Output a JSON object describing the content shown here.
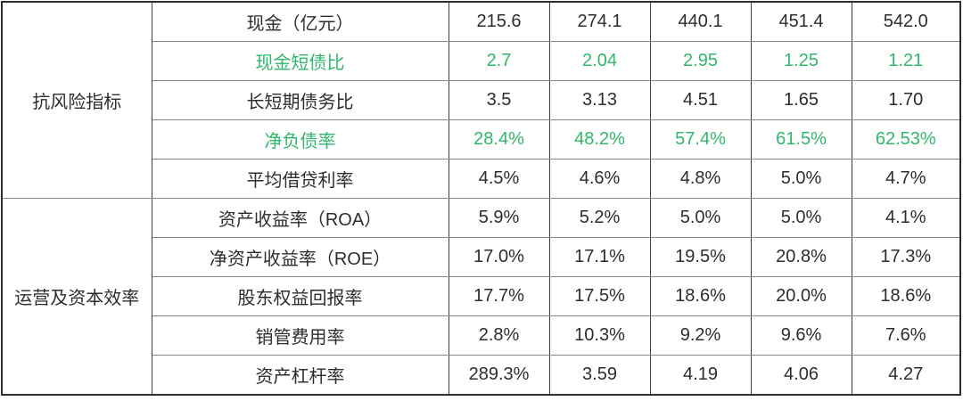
{
  "chart_data": {
    "type": "table",
    "title": "",
    "column_headers": [],
    "green_hex": "#31b76c",
    "text_hex": "#2d2d2d",
    "row_groups": [
      {
        "label": "抗风险指标",
        "rows": [
          {
            "metric": "现金（亿元）",
            "highlight": false,
            "values": [
              "215.6",
              "274.1",
              "440.1",
              "451.4",
              "542.0"
            ]
          },
          {
            "metric": "现金短债比",
            "highlight": true,
            "values": [
              "2.7",
              "2.04",
              "2.95",
              "1.25",
              "1.21"
            ]
          },
          {
            "metric": "长短期债务比",
            "highlight": false,
            "values": [
              "3.5",
              "3.13",
              "4.51",
              "1.65",
              "1.70"
            ]
          },
          {
            "metric": "净负债率",
            "highlight": true,
            "values": [
              "28.4%",
              "48.2%",
              "57.4%",
              "61.5%",
              "62.53%"
            ]
          },
          {
            "metric": "平均借贷利率",
            "highlight": false,
            "values": [
              "4.5%",
              "4.6%",
              "4.8%",
              "5.0%",
              "4.7%"
            ]
          }
        ]
      },
      {
        "label": "运营及资本效率",
        "rows": [
          {
            "metric": "资产收益率（ROA）",
            "highlight": false,
            "values": [
              "5.9%",
              "5.2%",
              "5.0%",
              "5.0%",
              "4.1%"
            ]
          },
          {
            "metric": "净资产收益率（ROE）",
            "highlight": false,
            "values": [
              "17.0%",
              "17.1%",
              "19.5%",
              "20.8%",
              "17.3%"
            ]
          },
          {
            "metric": "股东权益回报率",
            "highlight": false,
            "values": [
              "17.7%",
              "17.5%",
              "18.6%",
              "20.0%",
              "18.6%"
            ]
          },
          {
            "metric": "销管费用率",
            "highlight": false,
            "values": [
              "2.8%",
              "10.3%",
              "9.2%",
              "9.6%",
              "7.6%"
            ]
          },
          {
            "metric": "资产杠杆率",
            "highlight": false,
            "values": [
              "289.3%",
              "3.59",
              "4.19",
              "4.06",
              "4.27"
            ]
          }
        ]
      }
    ]
  }
}
